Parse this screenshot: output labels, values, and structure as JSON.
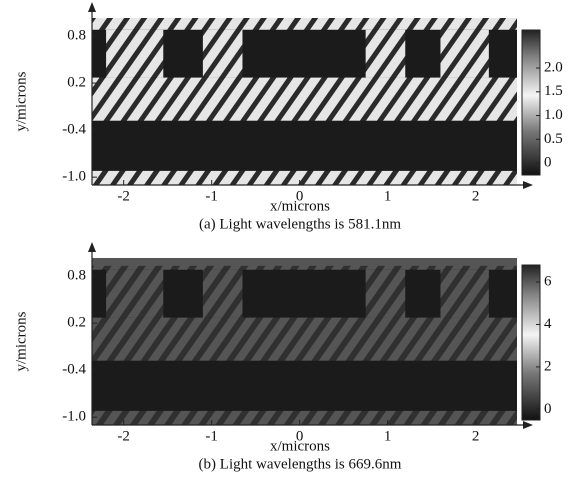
{
  "chart_data": [
    {
      "type": "heatmap",
      "xlabel": "x/microns",
      "ylabel": "y/microns",
      "caption": "(a) Light wavelengths is 581.1nm",
      "xlim": [
        -2.36,
        2.47
      ],
      "ylim": [
        -1.1,
        1.03
      ],
      "xticks": [
        -2,
        -1,
        0,
        1,
        2
      ],
      "yticks": [
        0.8,
        0.2,
        -0.4,
        {
          "value": -1,
          "label": "-1.0"
        }
      ],
      "colorbar": {
        "lim": [
          -0.25,
          2.8
        ],
        "ticks": [
          0,
          0.5,
          {
            "value": 1,
            "label": "1.0"
          },
          1.5,
          {
            "value": 2,
            "label": "2.0"
          }
        ]
      }
    },
    {
      "type": "heatmap",
      "xlabel": "x/microns",
      "ylabel": "y/microns",
      "caption": "(b) Light wavelengths is 669.6nm",
      "xlim": [
        -2.36,
        2.47
      ],
      "ylim": [
        -1.1,
        1.03
      ],
      "xticks": [
        -2,
        -1,
        0,
        1,
        2
      ],
      "yticks": [
        0.8,
        0.2,
        -0.4,
        {
          "value": -1,
          "label": "-1.0"
        }
      ],
      "colorbar": {
        "lim": [
          -0.5,
          6.8
        ],
        "ticks": [
          0,
          2,
          4,
          6
        ]
      }
    }
  ]
}
